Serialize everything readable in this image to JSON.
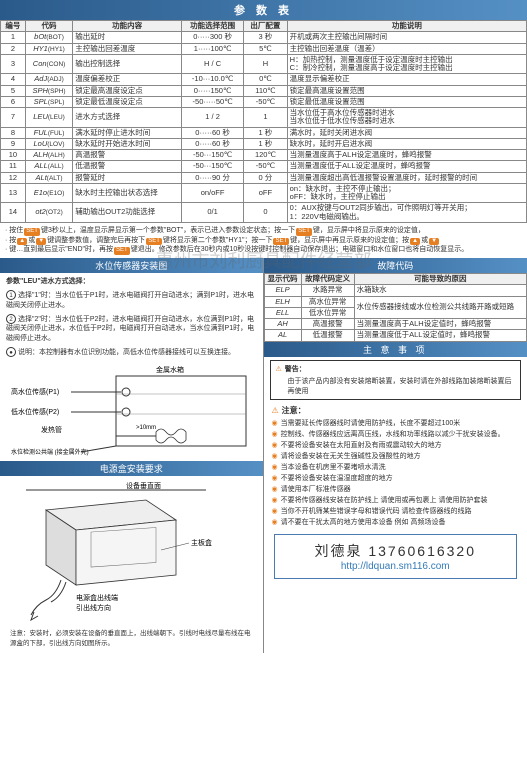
{
  "main_header": "参 数 表",
  "param_cols": [
    "编号",
    "代码",
    "功能内容",
    "功能选择范围",
    "出厂配置",
    "功能说明"
  ],
  "params": [
    {
      "n": "1",
      "c": "bOt",
      "c2": "(BOT)",
      "f": "输出延时",
      "r": "0·····300 秒",
      "d": "3 秒",
      "e": "开机或两次主控输出间隔时间"
    },
    {
      "n": "2",
      "c": "HY1",
      "c2": "(HY1)",
      "f": "主控输出回差温度",
      "r": "1·····100℃",
      "d": "5℃",
      "e": "主控输出回差温度（温差）"
    },
    {
      "n": "3",
      "c": "Con",
      "c2": "(CON)",
      "f": "输出控制选择",
      "r": "H / C",
      "d": "H",
      "e": "H：加热控制，测量温度低于设定温度时主控输出\nC：制冷控制，测量温度高于设定温度时主控输出"
    },
    {
      "n": "4",
      "c": "AdJ",
      "c2": "(ADJ)",
      "f": "温度偏差校正",
      "r": "-10···10.0℃",
      "d": "0℃",
      "e": "温度显示偏差校正"
    },
    {
      "n": "5",
      "c": "SPH",
      "c2": "(SPH)",
      "f": "锁定最高温度设定点",
      "r": "0·····150℃",
      "d": "110℃",
      "e": "锁定最高温度设置范围"
    },
    {
      "n": "6",
      "c": "SPL",
      "c2": "(SPL)",
      "f": "锁定最低温度设定点",
      "r": "-50·····50℃",
      "d": "-50℃",
      "e": "锁定最低温度设置范围"
    },
    {
      "n": "7",
      "c": "LEU",
      "c2": "(LEU)",
      "f": "进水方式选择",
      "r": "1 / 2",
      "d": "1",
      "e": "当水位低于高水位传感器时进水\n当水位低于低水位传感器时进水"
    },
    {
      "n": "8",
      "c": "FUL",
      "c2": "(FUL)",
      "f": "满水延时停止进水时间",
      "r": "0·····60 秒",
      "d": "1 秒",
      "e": "满水时，延时关闭进水阀"
    },
    {
      "n": "9",
      "c": "LoU",
      "c2": "(LOV)",
      "f": "缺水延时开始进水时间",
      "r": "0·····60 秒",
      "d": "1 秒",
      "e": "缺水时，延时开启进水阀"
    },
    {
      "n": "10",
      "c": "ALH",
      "c2": "(ALH)",
      "f": "高温报警",
      "r": "-50···150℃",
      "d": "120℃",
      "e": "当测量温度高于ALH设定温度时，蜂鸣报警"
    },
    {
      "n": "11",
      "c": "ALL",
      "c2": "(ALL)",
      "f": "低温报警",
      "r": "-50···150℃",
      "d": "-50℃",
      "e": "当测量温度低于ALL设定温度时，蜂鸣报警"
    },
    {
      "n": "12",
      "c": "ALt",
      "c2": "(ALT)",
      "f": "报警延时",
      "r": "0·····90 分",
      "d": "0 分",
      "e": "当测量温度超出高低温报警设置温度时，延时报警的时间"
    },
    {
      "n": "13",
      "c": "E1o",
      "c2": "(E1O)",
      "f": "缺水时主控输出状态选择",
      "r": "on/oFF",
      "d": "oFF",
      "e": "on：缺水时，主控不停止输出；\noFF：缺水时，主控停止输出"
    },
    {
      "n": "14",
      "c": "ot2",
      "c2": "(OT2)",
      "f": "辅助输出OUT2功能选择",
      "r": "0/1",
      "d": "0",
      "e": "0：AUX按键与OUT2同步输出，可作照明灯等开关用；\n1：220V电磁阀输出。"
    }
  ],
  "instr_lines": [
    {
      "pre": "按住",
      "k1": "SET",
      "mid": "键3秒以上，温度显示屏显示第一个参数\"BOT\"，表示已进入参数设定状态；按一下",
      "k2": "SET",
      "post": "键，显示屏中将显示原来的设定值，"
    },
    {
      "pre": "按",
      "k1": "▲",
      "mid": "或",
      "k2": "▼",
      "mid2": "键调整参数值，调整完后再按下",
      "k3": "SET",
      "mid3": "键将显示第二个参数\"HY1\"；按一下",
      "k4": "SET",
      "post": "键，显示屏中再显示原来的设定值；按",
      "k5": "▲",
      "mid4": "或",
      "k6": "▼"
    },
    {
      "pre": "键…直到最后显示\"END\"时，再按",
      "k1": "SET",
      "post": "键退出。修改参数后在30秒内或10秒没按键时控制器自动保存退出；电磁窗口和水位窗口也将自动恢复显示。"
    }
  ],
  "h_sensor": "水位传感器安装图",
  "sensor_intro": "参数\"LEU\"进水方式选择：",
  "sensor_1": "选择\"1\"时：当水位低于P1时，进水电磁阀打开自动进水；满到P1时，进水电磁阀关闭停止进水。",
  "sensor_2": "选择\"2\"时：当水位低于P2时，进水电磁阀打开自动进水，水位满到P1时，电磁阀关闭停止进水，水位低于P2时，电磁阀打开自动进水，当水位满到P1时，电磁阀停止进水。",
  "sensor_note": "说明：本控制器有水位识别功能，高低水位传感器接线可以互换连接。",
  "diag_labels": {
    "box": "金属水箱",
    "p1": "高水位传感(P1)",
    "p2": "低水位传感(P2)",
    "heat": "发热管",
    "gap": ">10mm",
    "common": "水位检测公共端\n(接金属外壳)"
  },
  "h_power": "电源盒安装要求",
  "power_labels": [
    "设备垂直面",
    "主板盒",
    "电源盒出线端",
    "引出线方向"
  ],
  "power_note": "注意：安装时，必须安装在设备的垂直面上，出线端朝下。引线时电线尽量布线在电源盒的下部，引出线方向如图所示。",
  "h_fault": "故障代码",
  "fault_cols": [
    "显示代码",
    "故障代码定义",
    "可能导致的原因"
  ],
  "faults": [
    {
      "c": "ELP",
      "d": "水路异常",
      "r": "水箱缺水"
    },
    {
      "c": "ELH",
      "d": "高水位异常",
      "r": "水位传感器接线或水位检测公共线路开路或短路"
    },
    {
      "c": "ELL",
      "d": "低水位异常",
      "r": "水位传感器接线或水位检测公共线路开路或短路"
    },
    {
      "c": "AH",
      "d": "高温报警",
      "r": "当测量温度高于ALH设定值时，蜂鸣报警"
    },
    {
      "c": "AL",
      "d": "低温报警",
      "r": "当测量温度低于ALL设定值时，蜂鸣报警"
    }
  ],
  "h_notes": "主 意 事 项",
  "warn_title": "警告：",
  "warn_body": "由于该产品内部没有安装熔断装置，安装时请在外部线路加装熔断装置后再使用",
  "note_title": "注意：",
  "notes": [
    "当需要延长传感器线时请使用防护线，长度不要超过100米",
    "控制线、传感器线应远离高压线，水线和功率线路以减少干扰安装设备。",
    "不要将设备安装在太阳直射及有雨或震动较大的地方",
    "请将设备安装在无关生强碱性及强酸性的地方",
    "当本设备在机房里不要堵喷水清洗",
    "不要将设备安装在温湿度超度的地方",
    "请使用本厂标准传感器",
    "不要将传感器线安装在防护线上 请使用或再包裹上 请使用防护套装",
    "当你不开机筛某些错误字母和错误代码 请检查传感器线的线路",
    "请不要在干扰太高的地方使用本设备 例如 高频场设备"
  ],
  "contact_name": "刘德泉 13760616320",
  "contact_url": "http://ldquan.sm116.com"
}
